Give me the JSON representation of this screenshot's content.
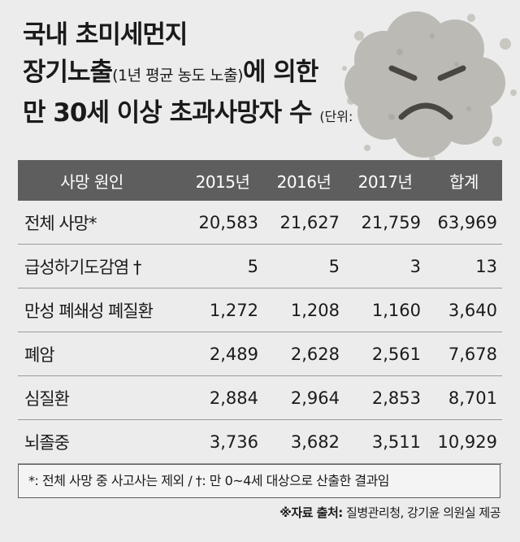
{
  "title": {
    "line1": "국내 초미세먼지",
    "line2_main": "장기노출",
    "line2_sub": "(1년 평균 농도 노출)",
    "line2_tail": "에 의한",
    "line3_main": "만 30세 이상 초과사망자 수",
    "line3_unit": "(단위: 명)"
  },
  "colors": {
    "header_bg": "#5e5e5e",
    "background": "#ececec",
    "mascot": "#bcbab4"
  },
  "mascot_icon": "angry-dust-cloud-icon",
  "chart_data": {
    "type": "table",
    "unit": "(단위: 명)",
    "columns": [
      "사망 원인",
      "2015년",
      "2016년",
      "2017년",
      "합계"
    ],
    "rows": [
      {
        "cause": "전체 사망*",
        "values": [
          "20,583",
          "21,627",
          "21,759",
          "63,969"
        ]
      },
      {
        "cause": "급성하기도감염 †",
        "values": [
          "5",
          "5",
          "3",
          "13"
        ]
      },
      {
        "cause": "만성 폐쇄성 폐질환",
        "values": [
          "1,272",
          "1,208",
          "1,160",
          "3,640"
        ]
      },
      {
        "cause": "폐암",
        "values": [
          "2,489",
          "2,628",
          "2,561",
          "7,678"
        ]
      },
      {
        "cause": "심질환",
        "values": [
          "2,884",
          "2,964",
          "2,853",
          "8,701"
        ]
      },
      {
        "cause": "뇌졸중",
        "values": [
          "3,736",
          "3,682",
          "3,511",
          "10,929"
        ]
      }
    ]
  },
  "footnote": "*: 전체 사망 중 사고사는 제외 / †: 만 0~4세 대상으로 산출한 결과임",
  "source": {
    "label": "※자료 출처:",
    "text": " 질병관리청, 강기윤 의원실 제공"
  }
}
